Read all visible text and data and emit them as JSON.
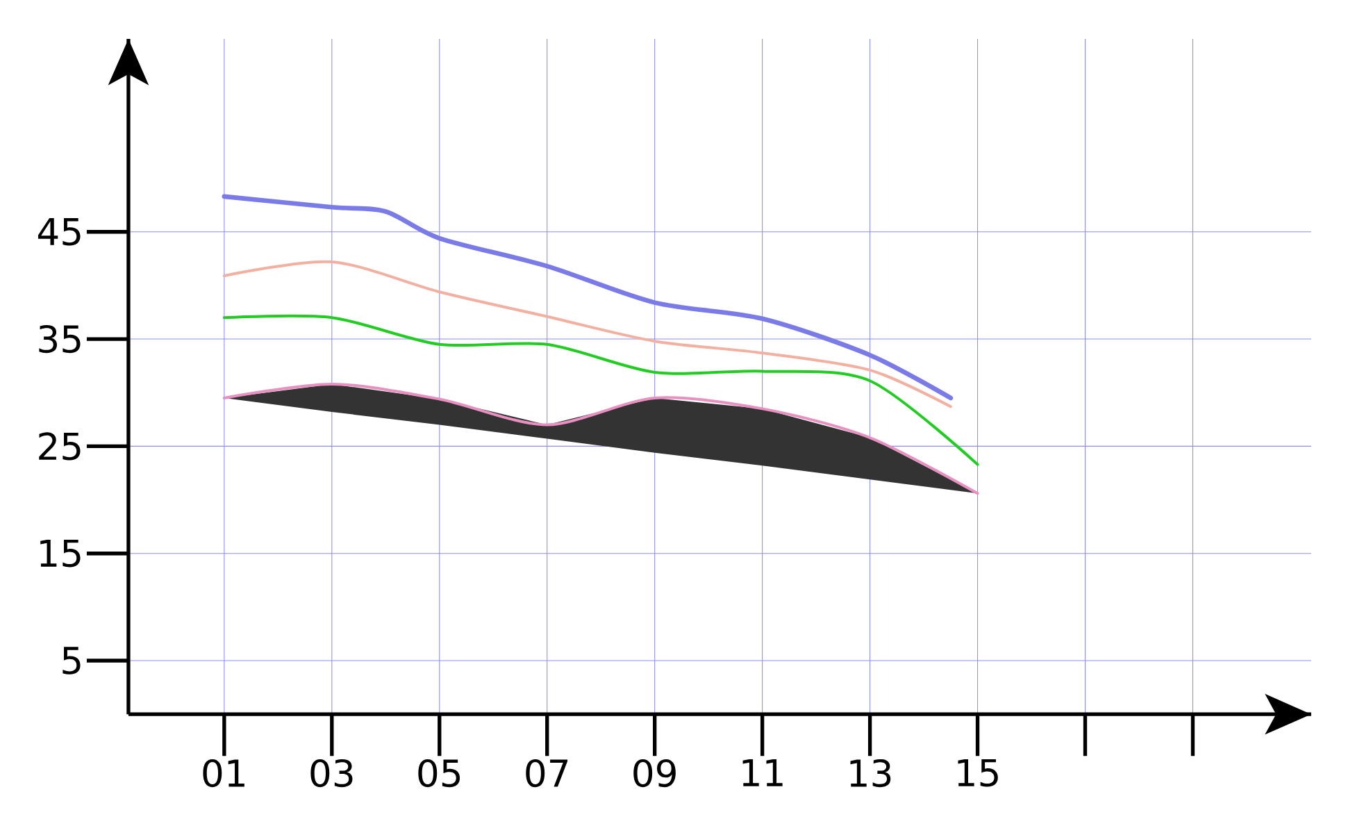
{
  "chart_data": {
    "type": "line",
    "xlim": [
      -0.78,
      21.2
    ],
    "ylim": [
      0,
      63
    ],
    "grid": true,
    "xticks": [
      {
        "value": 1,
        "label": "01"
      },
      {
        "value": 3,
        "label": "03"
      },
      {
        "value": 5,
        "label": "05"
      },
      {
        "value": 7,
        "label": "07"
      },
      {
        "value": 9,
        "label": "09"
      },
      {
        "value": 11,
        "label": "11"
      },
      {
        "value": 13,
        "label": "13"
      },
      {
        "value": 15,
        "label": "15"
      },
      {
        "value": 17,
        "label": null
      },
      {
        "value": 19,
        "label": null
      }
    ],
    "yticks": [
      5,
      15,
      25,
      35,
      45
    ],
    "series": [
      {
        "color": "#7b7be8",
        "x": [
          1,
          3,
          4,
          5,
          7,
          9,
          11,
          13,
          14.5
        ],
        "values": [
          48.3,
          47.3,
          46.9,
          44.4,
          41.8,
          38.4,
          36.9,
          33.5,
          29.5
        ]
      },
      {
        "color": "#f2b0a0",
        "x": [
          1,
          3,
          5,
          7,
          9,
          11,
          13,
          14.5
        ],
        "values": [
          40.9,
          42.2,
          39.4,
          37.1,
          34.8,
          33.7,
          32.1,
          28.7
        ]
      },
      {
        "color": "#22cc22",
        "x": [
          1,
          3,
          5,
          7,
          9,
          11,
          13,
          15
        ],
        "values": [
          37.0,
          37.0,
          34.5,
          34.5,
          31.9,
          32.0,
          31.1,
          23.3
        ]
      },
      {
        "color": "#e890c0",
        "x": [
          1,
          3,
          5,
          7,
          9,
          11,
          13,
          15
        ],
        "values": [
          29.5,
          30.8,
          29.4,
          27.0,
          29.5,
          28.5,
          25.8,
          20.6
        ],
        "lower": [
          29.5,
          28.2,
          27.0,
          25.7,
          24.4,
          23.2,
          21.9,
          20.6
        ],
        "upper": [
          29.5,
          30.8,
          29.4,
          27.0,
          29.5,
          28.5,
          25.8,
          20.6
        ]
      }
    ]
  }
}
